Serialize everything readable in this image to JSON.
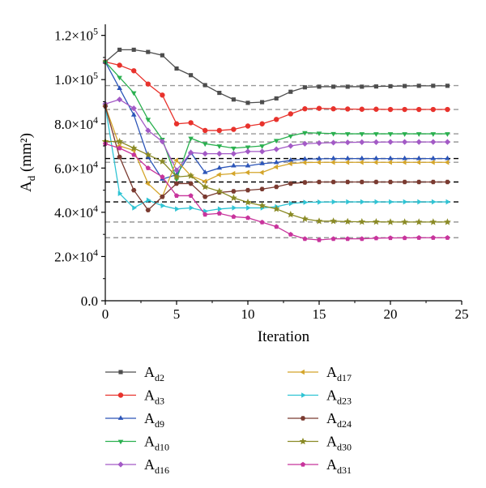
{
  "chart_data": {
    "type": "line",
    "xlabel": "Iteration",
    "ylabel_main": "A",
    "ylabel_sub": "d",
    "ylabel_unit": " (mm²)",
    "xlim": [
      0,
      25
    ],
    "ylim": [
      0,
      125000
    ],
    "x_ticks": [
      {
        "value": 0,
        "label": "0"
      },
      {
        "value": 5,
        "label": "5"
      },
      {
        "value": 10,
        "label": "10"
      },
      {
        "value": 15,
        "label": "15"
      },
      {
        "value": 20,
        "label": "20"
      },
      {
        "value": 25,
        "label": "25"
      }
    ],
    "y_ticks": [
      {
        "value": 0,
        "label": "0.0",
        "exp": ""
      },
      {
        "value": 20000,
        "label": "2.0×10",
        "exp": "4"
      },
      {
        "value": 40000,
        "label": "4.0×10",
        "exp": "4"
      },
      {
        "value": 60000,
        "label": "6.0×10",
        "exp": "4"
      },
      {
        "value": 80000,
        "label": "8.0×10",
        "exp": "4"
      },
      {
        "value": 100000,
        "label": "1.0×10",
        "exp": "5"
      },
      {
        "value": 120000,
        "label": "1.2×10",
        "exp": "5"
      }
    ],
    "reference_lines": [
      {
        "value": 97300,
        "color": "#999999"
      },
      {
        "value": 86500,
        "color": "#999999"
      },
      {
        "value": 75500,
        "color": "#999999"
      },
      {
        "value": 71800,
        "color": "#999999"
      },
      {
        "value": 64300,
        "color": "#000000"
      },
      {
        "value": 62600,
        "color": "#999999"
      },
      {
        "value": 53700,
        "color": "#000000"
      },
      {
        "value": 44700,
        "color": "#000000"
      },
      {
        "value": 35600,
        "color": "#999999"
      },
      {
        "value": 28500,
        "color": "#999999"
      }
    ],
    "x": [
      0,
      1,
      2,
      3,
      4,
      5,
      6,
      7,
      8,
      9,
      10,
      11,
      12,
      13,
      14,
      15,
      16,
      17,
      18,
      19,
      20,
      21,
      22,
      23,
      24
    ],
    "series": [
      {
        "name": "A",
        "sub": "d2",
        "color": "#4d4d4d",
        "marker": "square",
        "values": [
          108000,
          113500,
          113500,
          112500,
          111000,
          105000,
          102000,
          97500,
          94000,
          91000,
          89500,
          89800,
          91500,
          94500,
          96500,
          96800,
          96800,
          96800,
          96800,
          96900,
          97000,
          97100,
          97200,
          97200,
          97200
        ]
      },
      {
        "name": "A",
        "sub": "d3",
        "color": "#e8322c",
        "marker": "circle",
        "values": [
          108000,
          106500,
          104000,
          98000,
          93000,
          80000,
          80500,
          77000,
          77000,
          77500,
          79000,
          80000,
          82000,
          84500,
          86800,
          87000,
          86800,
          86700,
          86600,
          86600,
          86500,
          86500,
          86500,
          86500,
          86500
        ]
      },
      {
        "name": "A",
        "sub": "d9",
        "color": "#2c55b8",
        "marker": "triangle-up",
        "values": [
          108000,
          96000,
          84000,
          65000,
          55000,
          57000,
          67000,
          58000,
          60000,
          61000,
          61000,
          62000,
          62500,
          63500,
          64000,
          64200,
          64300,
          64300,
          64300,
          64300,
          64300,
          64300,
          64300,
          64300,
          64300
        ]
      },
      {
        "name": "A",
        "sub": "d10",
        "color": "#2ab04f",
        "marker": "triangle-down",
        "values": [
          108000,
          101000,
          94000,
          82000,
          73000,
          55000,
          73500,
          71000,
          70000,
          69000,
          69500,
          70000,
          72500,
          74500,
          76000,
          75800,
          75600,
          75500,
          75500,
          75500,
          75500,
          75500,
          75500,
          75500,
          75500
        ]
      },
      {
        "name": "A",
        "sub": "d16",
        "color": "#a35ac6",
        "marker": "diamond",
        "values": [
          89000,
          91000,
          87000,
          77000,
          72000,
          59000,
          67000,
          66500,
          66500,
          66500,
          67500,
          67500,
          68500,
          70000,
          71000,
          71300,
          71500,
          71600,
          71700,
          71700,
          71800,
          71800,
          71800,
          71800,
          71800
        ]
      },
      {
        "name": "A",
        "sub": "d17",
        "color": "#d4a52a",
        "marker": "triangle-left",
        "values": [
          88000,
          70000,
          68000,
          53000,
          47000,
          63500,
          56500,
          54000,
          57000,
          57500,
          58000,
          58000,
          60500,
          62000,
          62500,
          62600,
          62600,
          62600,
          62600,
          62600,
          62600,
          62600,
          62600,
          62600,
          62600
        ]
      },
      {
        "name": "A",
        "sub": "d23",
        "color": "#2fc4d4",
        "marker": "triangle-right",
        "values": [
          88000,
          48500,
          42000,
          45500,
          43000,
          41500,
          42000,
          40500,
          41500,
          42000,
          42000,
          42000,
          42500,
          44000,
          44500,
          44600,
          44700,
          44700,
          44700,
          44700,
          44700,
          44700,
          44700,
          44700,
          44700
        ]
      },
      {
        "name": "A",
        "sub": "d24",
        "color": "#7a3a30",
        "marker": "hexagon",
        "values": [
          88000,
          65000,
          50000,
          41000,
          47000,
          53000,
          53000,
          47000,
          49000,
          49500,
          50000,
          50500,
          51500,
          53000,
          53500,
          53700,
          53700,
          53700,
          53700,
          53700,
          53700,
          53700,
          53700,
          53700,
          53700
        ]
      },
      {
        "name": "A",
        "sub": "d30",
        "color": "#8a8a25",
        "marker": "star",
        "values": [
          72000,
          72000,
          69000,
          66000,
          63000,
          56000,
          56500,
          51500,
          49500,
          46500,
          44500,
          43000,
          41500,
          39000,
          37000,
          36000,
          36000,
          35800,
          35700,
          35700,
          35600,
          35600,
          35600,
          35600,
          35600
        ]
      },
      {
        "name": "A",
        "sub": "d31",
        "color": "#c8349c",
        "marker": "pentagon",
        "values": [
          71000,
          69000,
          66000,
          60000,
          56000,
          47500,
          47500,
          39000,
          39500,
          38000,
          37500,
          35500,
          33500,
          30000,
          28000,
          27500,
          28000,
          28000,
          28000,
          28300,
          28400,
          28400,
          28500,
          28500,
          28500
        ]
      }
    ]
  }
}
